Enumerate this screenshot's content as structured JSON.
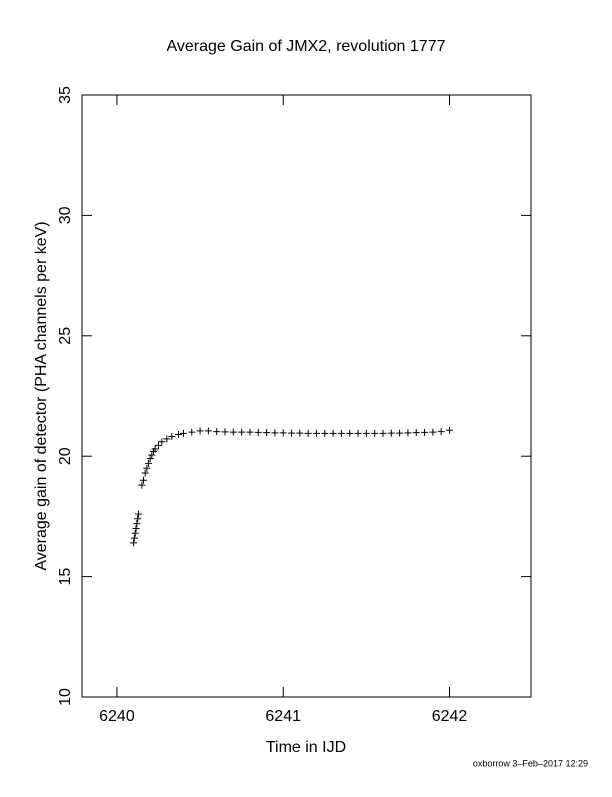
{
  "chart_data": {
    "type": "scatter",
    "title": "Average Gain of JMX2, revolution 1777",
    "x_label": "Time in IJD",
    "y_label": "Average gain of detector (PHA channels per keV)",
    "annotation": "oxborrow  3–Feb–2017 12:29",
    "color": "#000000",
    "marker": "+",
    "xlim": [
      6239.79,
      6242.49
    ],
    "ylim": [
      10,
      35
    ],
    "xticks": [
      6240,
      6241,
      6242
    ],
    "yticks": [
      10,
      15,
      20,
      25,
      30,
      35
    ],
    "x": [
      6240.1,
      6240.105,
      6240.11,
      6240.115,
      6240.12,
      6240.125,
      6240.13,
      6240.15,
      6240.16,
      6240.17,
      6240.18,
      6240.19,
      6240.2,
      6240.21,
      6240.22,
      6240.23,
      6240.25,
      6240.27,
      6240.3,
      6240.33,
      6240.37,
      6240.4,
      6240.45,
      6240.5,
      6240.55,
      6240.6,
      6240.65,
      6240.7,
      6240.75,
      6240.8,
      6240.85,
      6240.9,
      6240.95,
      6241.0,
      6241.05,
      6241.1,
      6241.15,
      6241.2,
      6241.25,
      6241.3,
      6241.35,
      6241.4,
      6241.45,
      6241.5,
      6241.55,
      6241.6,
      6241.65,
      6241.7,
      6241.75,
      6241.8,
      6241.85,
      6241.9,
      6241.95,
      6242.0
    ],
    "y": [
      16.4,
      16.6,
      16.8,
      17.0,
      17.2,
      17.4,
      17.6,
      18.8,
      19.0,
      19.3,
      19.5,
      19.7,
      19.9,
      20.05,
      20.2,
      20.3,
      20.45,
      20.6,
      20.72,
      20.82,
      20.9,
      20.95,
      21.0,
      21.05,
      21.05,
      21.02,
      21.01,
      21.0,
      21.0,
      21.0,
      20.99,
      20.98,
      20.97,
      20.97,
      20.96,
      20.96,
      20.95,
      20.95,
      20.95,
      20.95,
      20.95,
      20.95,
      20.95,
      20.95,
      20.95,
      20.95,
      20.96,
      20.96,
      20.97,
      20.98,
      20.99,
      21.0,
      21.02,
      21.08
    ]
  }
}
